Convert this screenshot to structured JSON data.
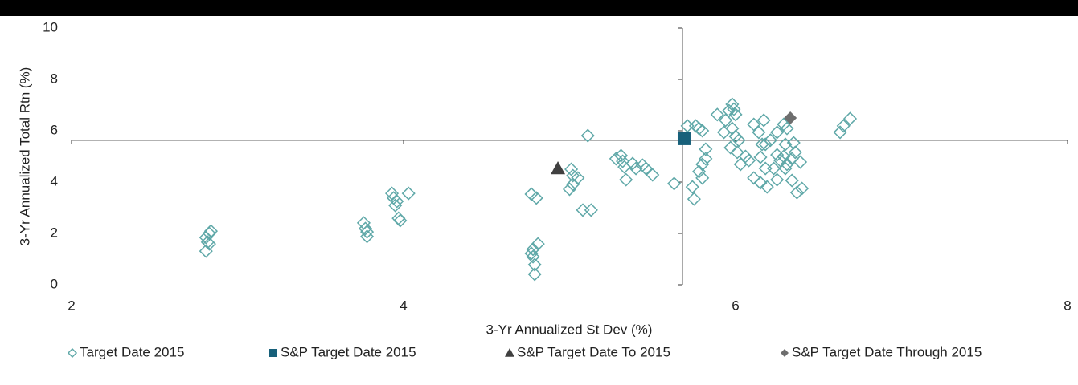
{
  "chart_data": {
    "type": "scatter",
    "xlabel": "3-Yr Annualized St Dev (%)",
    "ylabel": "3-Yr Annualized Total Rtn (%)",
    "xlim": [
      2,
      8
    ],
    "xticks": [
      2,
      4,
      6,
      8
    ],
    "ylim": [
      0,
      10
    ],
    "yticks": [
      0,
      2,
      4,
      6,
      8,
      10
    ],
    "x_axis_crosses_y": 5.63,
    "y_axis_crosses_x": 5.68,
    "legend": "bottom",
    "series": [
      {
        "name": "Target Date 2015",
        "color": "#5fa8a8",
        "marker": "diamond-open",
        "x": [
          2.81,
          2.83,
          2.84,
          2.82,
          2.81,
          2.83,
          3.76,
          3.77,
          3.78,
          3.78,
          3.93,
          3.94,
          3.95,
          3.97,
          3.98,
          4.03,
          3.96,
          4.77,
          4.8,
          4.78,
          4.81,
          4.78,
          4.79,
          4.79,
          4.77,
          5.0,
          5.01,
          5.02,
          5.05,
          5.02,
          5.08,
          5.13,
          5.11,
          5.28,
          5.31,
          5.32,
          5.33,
          5.34,
          5.38,
          5.4,
          5.44,
          5.46,
          5.5,
          5.63,
          5.71,
          5.76,
          5.78,
          5.8,
          5.74,
          5.75,
          5.78,
          5.8,
          5.82,
          5.82,
          5.8,
          5.89,
          5.94,
          5.96,
          5.98,
          5.99,
          6.0,
          5.93,
          5.98,
          5.97,
          6.0,
          6.02,
          6.03,
          6.06,
          6.08,
          6.01,
          6.15,
          6.16,
          6.11,
          6.14,
          6.17,
          6.21,
          6.18,
          6.18,
          6.11,
          6.15,
          6.19,
          6.25,
          6.23,
          6.25,
          6.27,
          6.25,
          6.29,
          6.31,
          6.3,
          6.29,
          6.31,
          6.34,
          6.35,
          6.36,
          6.34,
          6.37,
          6.4,
          6.39,
          6.3,
          6.63,
          6.65,
          6.69
        ],
        "values": [
          1.84,
          2.0,
          2.09,
          1.66,
          1.31,
          1.59,
          2.41,
          2.19,
          2.06,
          1.88,
          3.56,
          3.38,
          3.09,
          2.59,
          2.5,
          3.56,
          3.25,
          3.53,
          3.38,
          1.38,
          1.59,
          1.09,
          0.78,
          0.41,
          1.22,
          3.72,
          4.5,
          4.25,
          4.16,
          3.91,
          2.91,
          2.91,
          5.81,
          4.91,
          5.03,
          4.81,
          4.59,
          4.09,
          4.72,
          4.53,
          4.66,
          4.53,
          4.28,
          3.94,
          6.19,
          6.19,
          6.09,
          6.0,
          3.81,
          3.34,
          4.41,
          4.16,
          4.91,
          5.28,
          4.69,
          6.63,
          6.41,
          6.78,
          7.03,
          6.84,
          6.63,
          5.94,
          6.09,
          5.34,
          5.78,
          5.63,
          4.69,
          5.0,
          4.84,
          5.16,
          4.97,
          5.47,
          6.25,
          5.94,
          6.41,
          5.63,
          5.47,
          4.53,
          4.16,
          3.97,
          3.81,
          4.09,
          4.53,
          5.06,
          4.84,
          5.94,
          6.25,
          6.09,
          5.47,
          5.0,
          4.69,
          4.91,
          5.53,
          5.16,
          4.06,
          3.59,
          3.75,
          4.78,
          4.53,
          5.94,
          6.19,
          6.47
        ]
      },
      {
        "name": "S&P Target Date 2015",
        "color": "#17607a",
        "marker": "square",
        "x": [
          5.69
        ],
        "values": [
          5.69
        ]
      },
      {
        "name": "S&P Target Date To 2015",
        "color": "#404040",
        "marker": "triangle",
        "x": [
          4.93
        ],
        "values": [
          4.53
        ]
      },
      {
        "name": "S&P Target Date Through 2015",
        "color": "#6e6e6e",
        "marker": "diamond",
        "x": [
          6.33
        ],
        "values": [
          6.5
        ]
      }
    ]
  }
}
